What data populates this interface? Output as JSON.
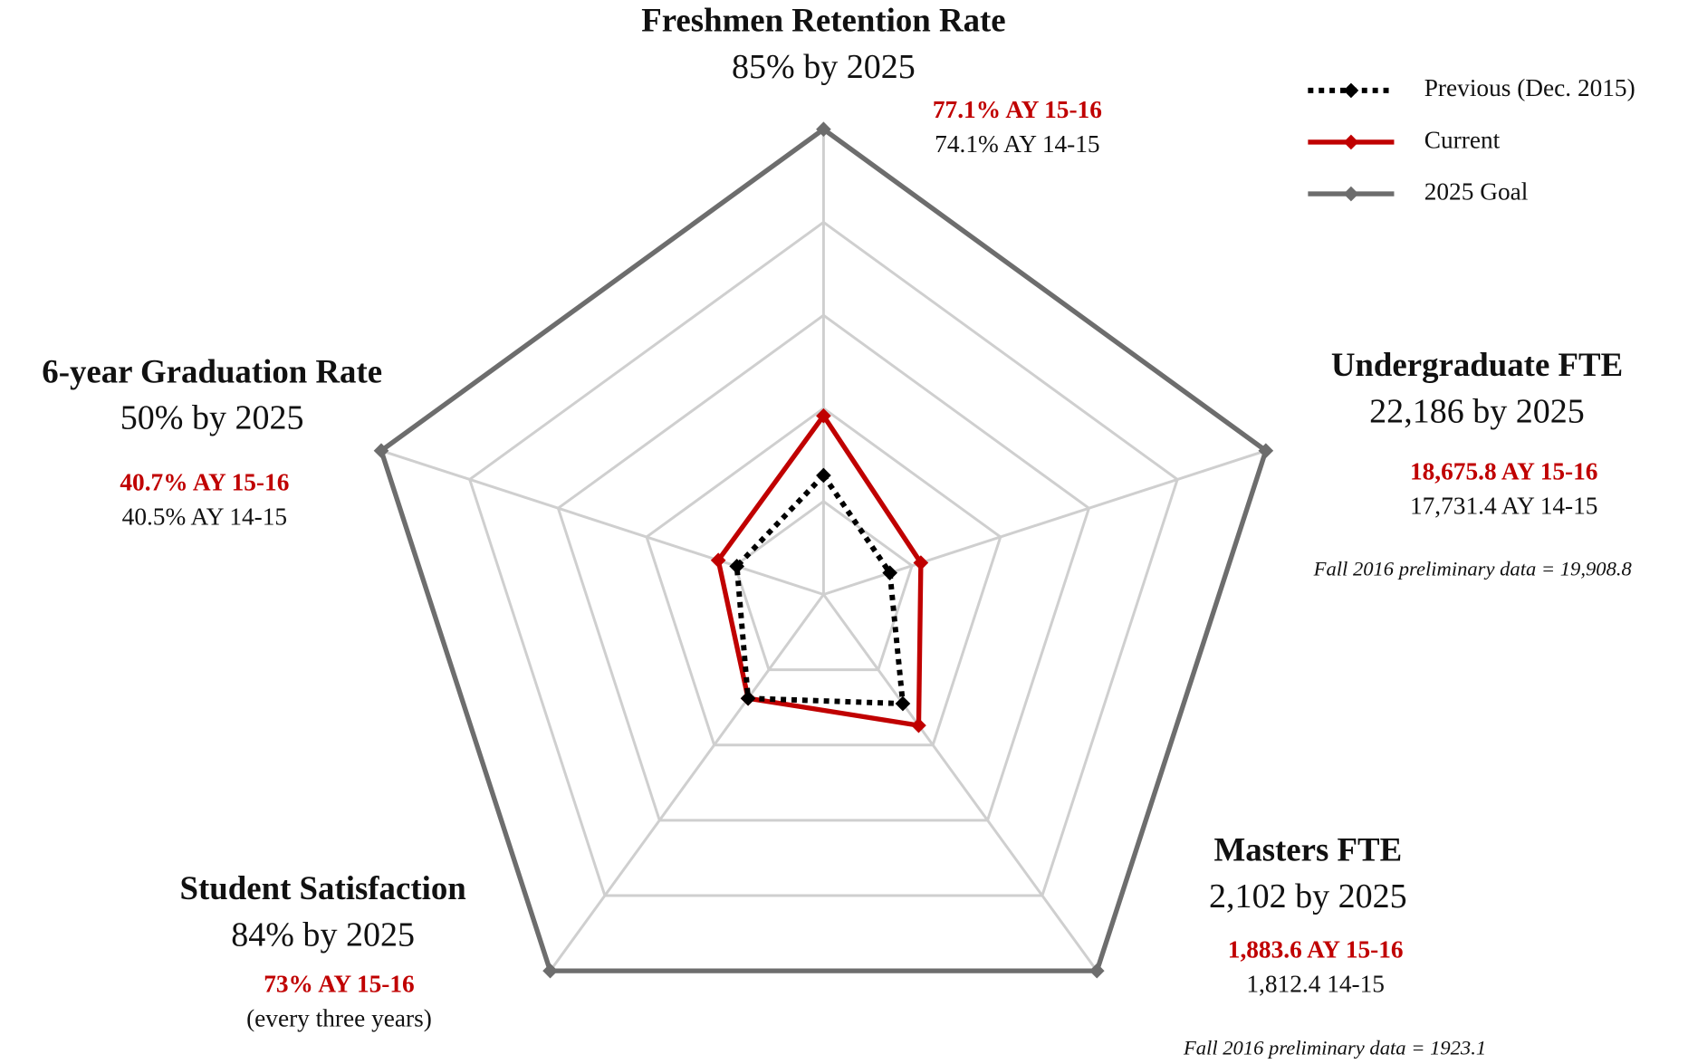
{
  "chart_data": {
    "type": "radar",
    "axes": [
      {
        "title": "Freshmen Retention Rate",
        "goal": "85% by 2025",
        "current": "77.1% AY 15-16",
        "previous": "74.1% AY 14-15"
      },
      {
        "title": "Undergraduate FTE",
        "goal": "22,186 by 2025",
        "current": "18,675.8 AY 15-16",
        "previous": "17,731.4 AY 14-15",
        "note": "Fall 2016 preliminary data = 19,908.8"
      },
      {
        "title": "Masters FTE",
        "goal": "2,102 by 2025",
        "current": "1,883.6 AY 15-16",
        "previous": "1,812.4 14-15",
        "note": "Fall 2016 preliminary data = 1923.1"
      },
      {
        "title": "Student Satisfaction",
        "goal": "84% by 2025",
        "current": "73% AY 15-16",
        "previous": "(every three years)"
      },
      {
        "title": "6-year Graduation Rate",
        "goal": "50% by 2025",
        "current": "40.7% AY 15-16",
        "previous": "40.5% AY 14-15"
      }
    ],
    "series": [
      {
        "name": "Previous (Dec. 2015)",
        "color": "#000000",
        "dash": "dotted",
        "values": [
          1.28,
          0.75,
          1.45,
          1.38,
          0.98
        ]
      },
      {
        "name": "Current",
        "color": "#c00000",
        "dash": "solid",
        "values": [
          1.92,
          1.1,
          1.74,
          1.38,
          1.19
        ]
      },
      {
        "name": "2025 Goal",
        "color": "#6d6d6d",
        "dash": "solid",
        "values": [
          5,
          5,
          5,
          5,
          5
        ]
      }
    ],
    "rlim": [
      0,
      5
    ],
    "rticks": [
      1,
      2,
      3,
      4,
      5
    ],
    "grid": true
  }
}
